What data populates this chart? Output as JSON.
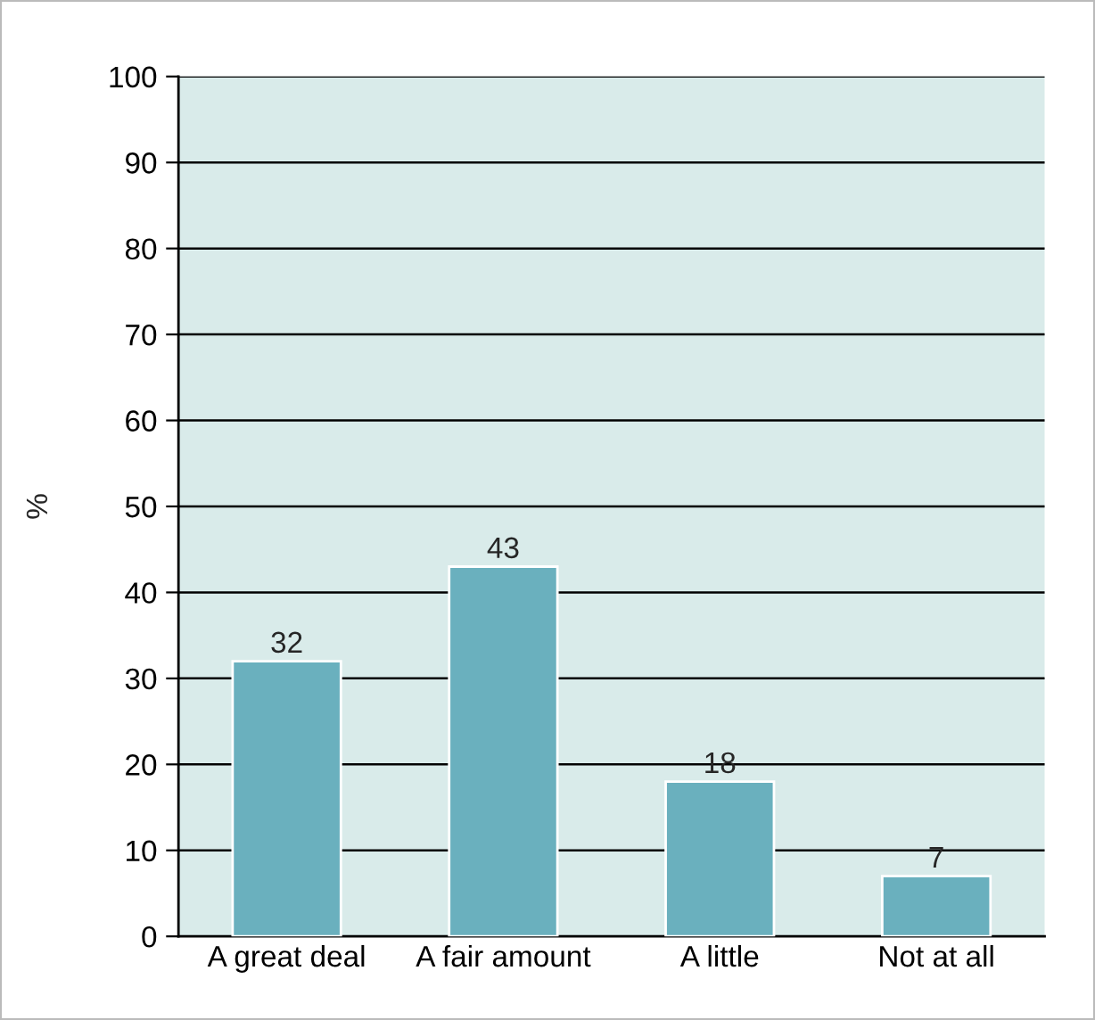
{
  "chart_data": {
    "type": "bar",
    "ylabel": "%",
    "categories": [
      "A great deal",
      "A fair amount",
      "A little",
      "Not at all"
    ],
    "values": [
      32,
      43,
      18,
      7
    ],
    "color": "#6ab0be",
    "ylim": [
      0,
      100
    ],
    "yticks": [
      0,
      10,
      20,
      30,
      40,
      50,
      60,
      70,
      80,
      90,
      100
    ],
    "grid": "y",
    "data_labels": true
  }
}
